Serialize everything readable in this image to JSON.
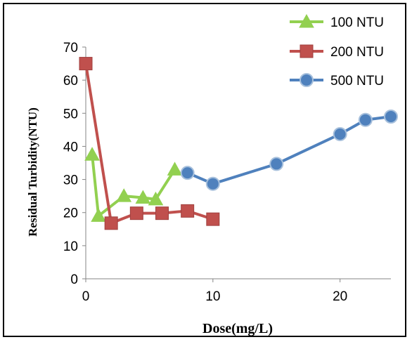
{
  "chart_data": {
    "type": "line",
    "xlabel": "Dose(mg/L)",
    "ylabel": "Residual Turbidity(NTU)",
    "xlim": [
      0,
      24
    ],
    "ylim": [
      0,
      70
    ],
    "xticks": [
      0,
      10,
      20
    ],
    "yticks": [
      0,
      10,
      20,
      30,
      40,
      50,
      60,
      70
    ],
    "grid": false,
    "legend_position": "top-right",
    "series": [
      {
        "name": "100 NTU",
        "marker": "triangle",
        "color": "#92D050",
        "x": [
          0.5,
          1,
          3,
          4.5,
          5.5,
          7
        ],
        "y": [
          37.5,
          19,
          25,
          24.5,
          24,
          33
        ]
      },
      {
        "name": "200 NTU",
        "marker": "square",
        "color": "#C0504D",
        "x": [
          0,
          2,
          4,
          6,
          8,
          10
        ],
        "y": [
          65,
          16.8,
          19.8,
          19.8,
          20.5,
          18
        ]
      },
      {
        "name": "500 NTU",
        "marker": "circle",
        "color": "#4F81BD",
        "x": [
          8,
          10,
          15,
          20,
          22,
          24
        ],
        "y": [
          32,
          28.7,
          34.7,
          43.7,
          48,
          49
        ]
      }
    ]
  }
}
